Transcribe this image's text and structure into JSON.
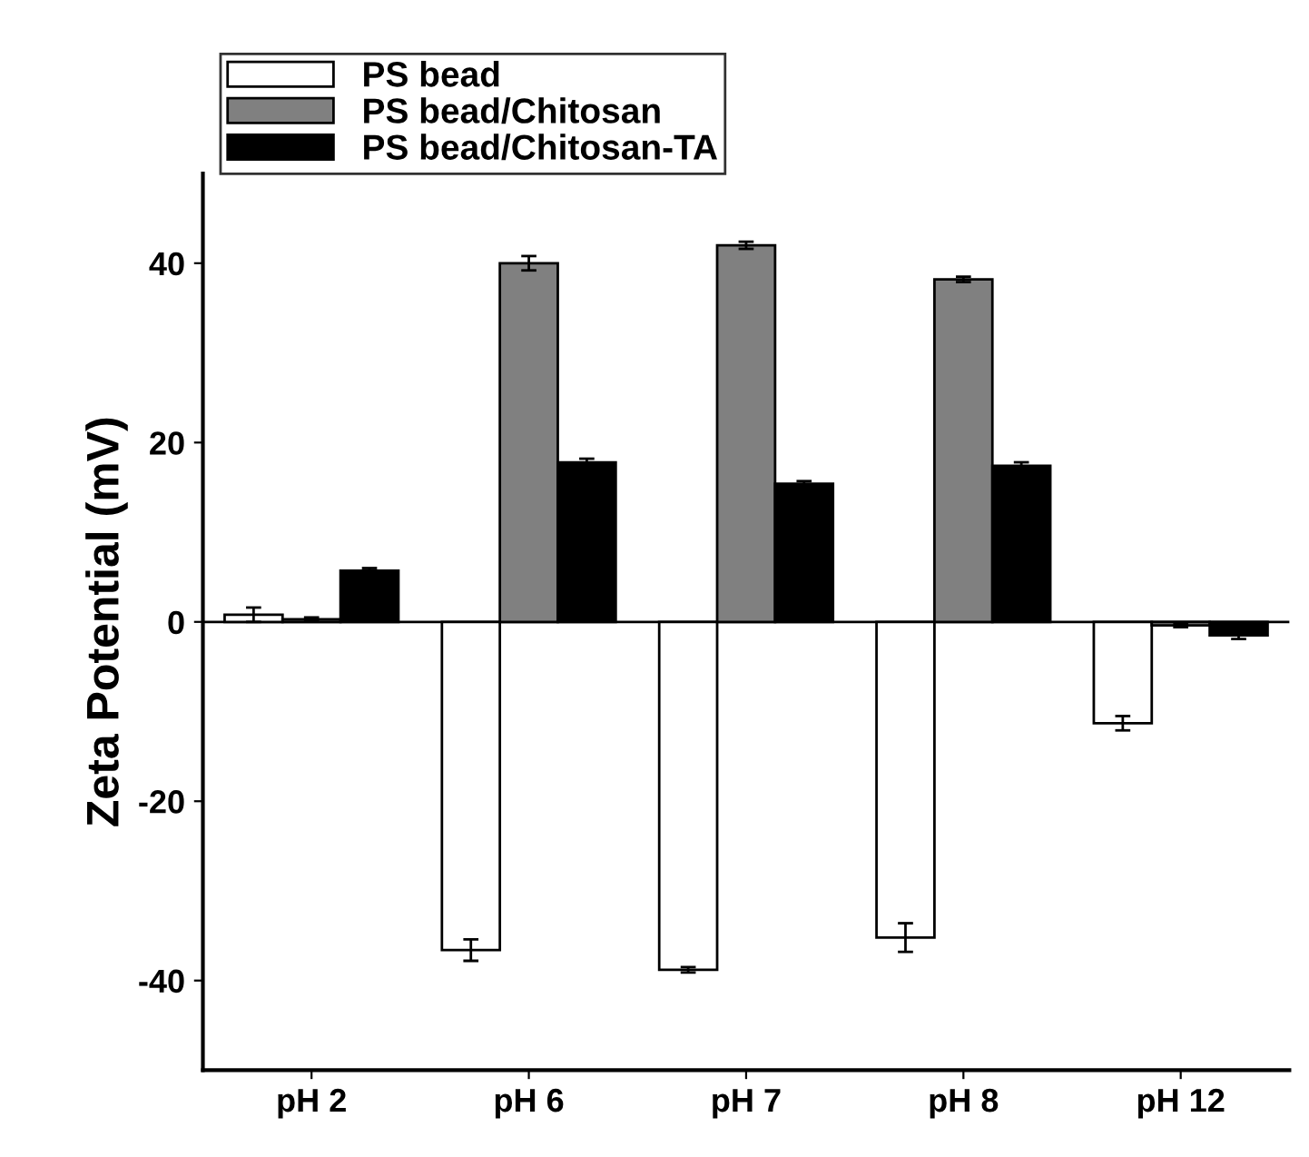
{
  "chart_data": {
    "type": "bar",
    "ylabel": "Zeta Potential (mV)",
    "categories": [
      "pH 2",
      "pH 6",
      "pH 7",
      "pH 8",
      "pH 12"
    ],
    "series": [
      {
        "name": "PS bead",
        "color": "#ffffff",
        "values": [
          0.8,
          -36.6,
          -38.8,
          -35.2,
          -11.3
        ],
        "errors": [
          0.8,
          1.2,
          0.3,
          1.6,
          0.8
        ]
      },
      {
        "name": "PS bead/Chitosan",
        "color": "#808080",
        "values": [
          0.3,
          40.0,
          42.0,
          38.2,
          -0.4
        ],
        "errors": [
          0.2,
          0.8,
          0.4,
          0.3,
          0.2
        ]
      },
      {
        "name": "PS bead/Chitosan-TA",
        "color": "#000000",
        "values": [
          5.7,
          17.8,
          15.4,
          17.4,
          -1.5
        ],
        "errors": [
          0.3,
          0.4,
          0.3,
          0.4,
          0.4
        ]
      }
    ],
    "ylim": [
      -50,
      50
    ],
    "yticks": [
      -40,
      -20,
      0,
      20,
      40
    ],
    "ref_lines": [
      {
        "axis": "y",
        "value": 0,
        "color": "#000000"
      }
    ],
    "legend": "top left",
    "grid": false
  }
}
